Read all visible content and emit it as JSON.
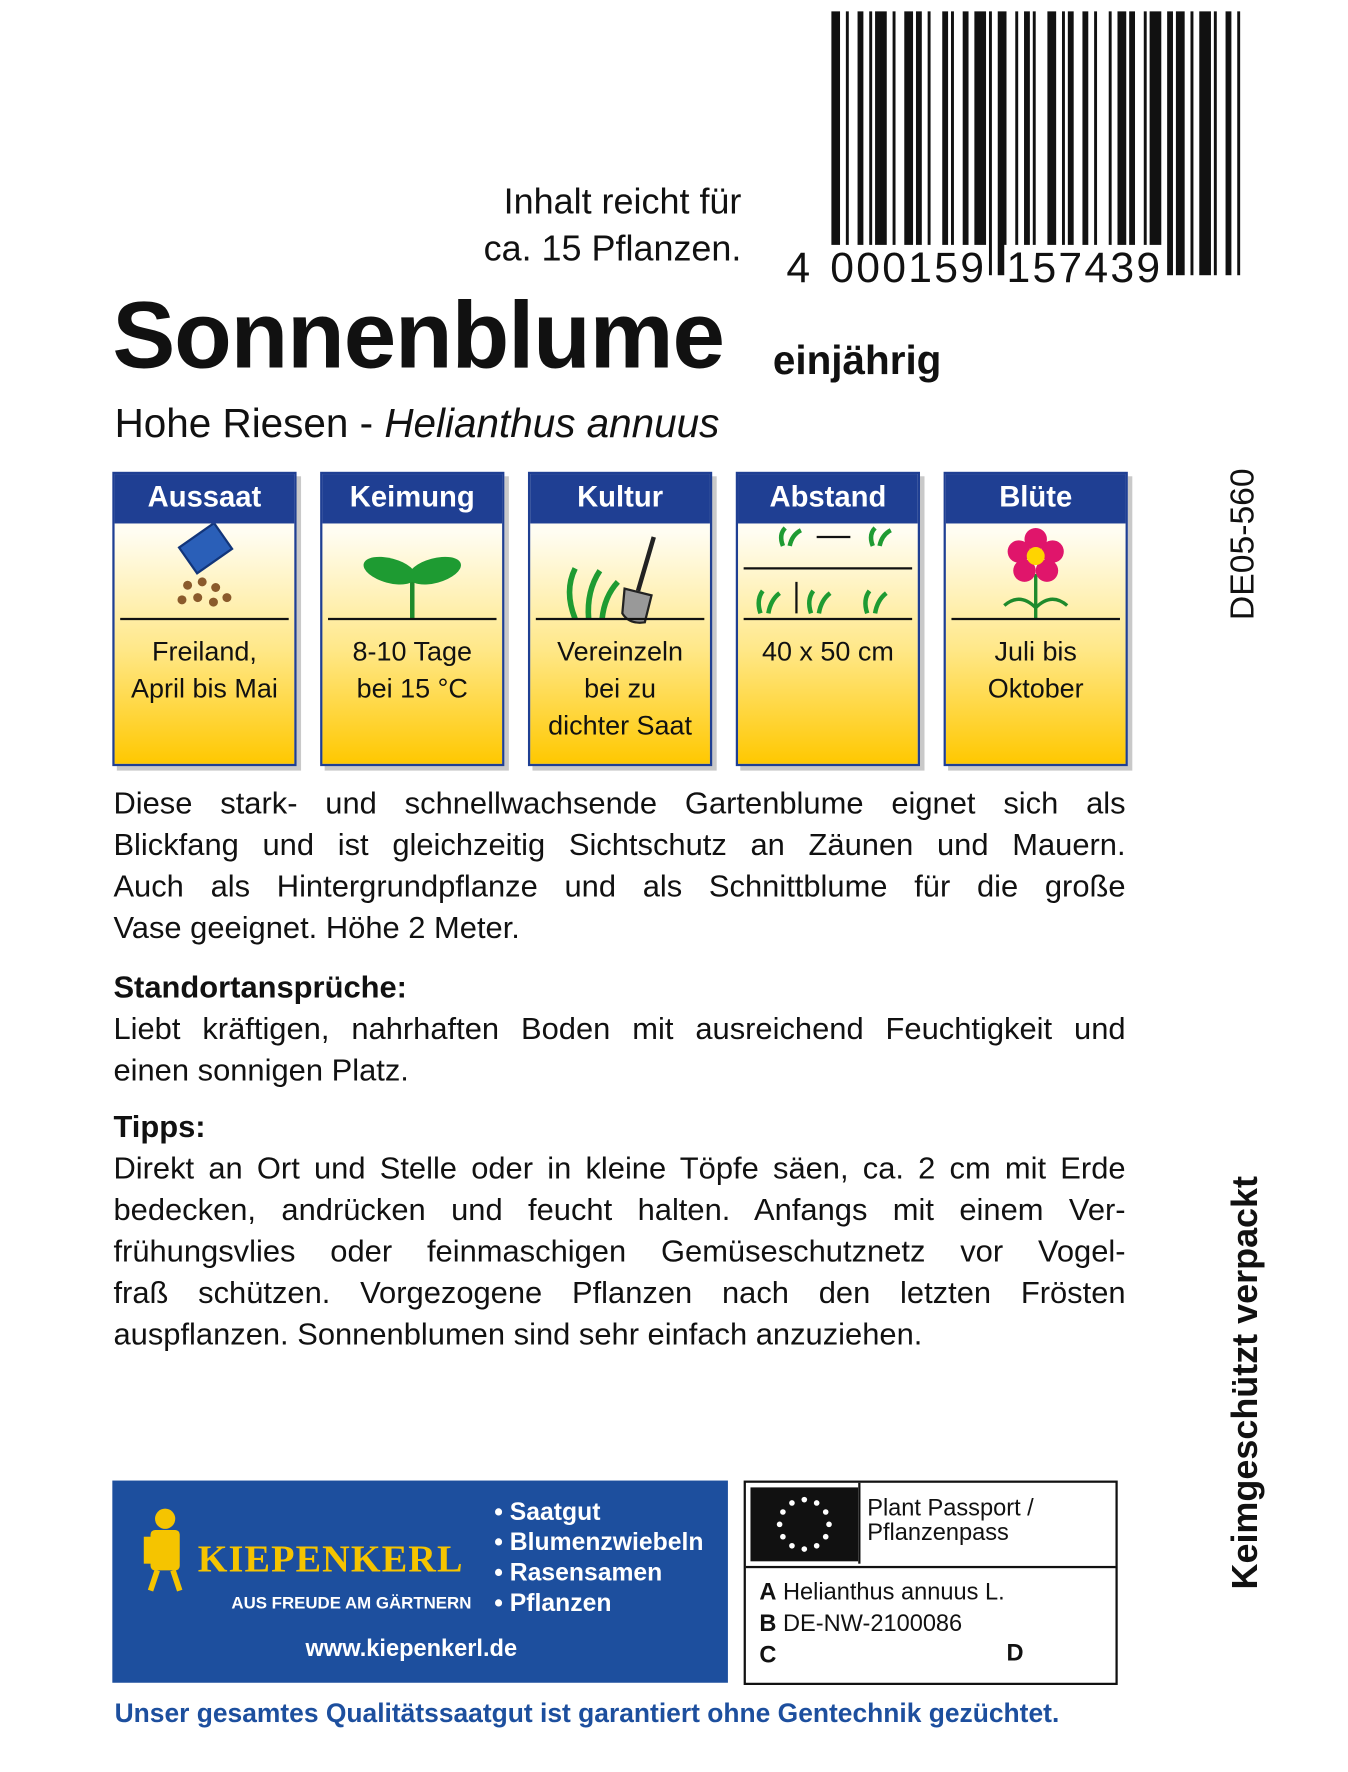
{
  "header": {
    "quantity_line1": "Inhalt reicht für",
    "quantity_line2": "ca. 15 Pflanzen.",
    "barcode_digits": [
      "4",
      "000159",
      "157439"
    ],
    "title": "Sonnenblume",
    "title_note": "einjährig",
    "subtitle": "Hohe Riesen -",
    "subtitle_latin": "Helianthus annuus"
  },
  "side": {
    "code": "DE05-560",
    "note": "Keimgeschützt verpackt"
  },
  "cards": [
    {
      "title": "Aussaat",
      "lines": [
        "Freiland,",
        "April bis Mai"
      ]
    },
    {
      "title": "Keimung",
      "lines": [
        "8-10 Tage",
        "bei 15 °C"
      ]
    },
    {
      "title": "Kultur",
      "lines": [
        "Vereinzeln",
        "bei zu",
        "dichter Saat"
      ]
    },
    {
      "title": "Abstand",
      "lines": [
        "40 x 50 cm"
      ]
    },
    {
      "title": "Blüte",
      "lines": [
        "Juli bis",
        "Oktober"
      ]
    }
  ],
  "description": {
    "lines": [
      "Diese stark- und schnellwachsende Gartenblume eignet sich als",
      "Blickfang und ist gleichzeitig Sichtschutz an Zäunen und Mauern.",
      "Auch als Hintergrundpflanze und als Schnittblume für die große",
      "Vase geeignet. Höhe 2 Meter."
    ]
  },
  "sections": [
    {
      "heading": "Standortansprüche:",
      "lines": [
        "Liebt kräftigen, nahrhaften Boden mit ausreichend Feuchtigkeit und",
        "einen sonnigen Platz."
      ]
    },
    {
      "heading": "Tipps:",
      "lines": [
        "Direkt an Ort und Stelle oder in kleine Töpfe säen, ca. 2 cm mit Erde",
        "bedecken, andrücken und feucht halten. Anfangs mit einem Ver-",
        "frühungsvlies oder feinmaschigen Gemüseschutznetz vor Vogel-",
        "fraß schützen. Vorgezogene Pflanzen nach den letzten Frösten",
        "auspflanzen. Sonnenblumen sind sehr einfach anzuziehen."
      ]
    }
  ],
  "footer": {
    "brand": "KIEPENKERL",
    "slogan": "AUS FREUDE AM GÄRTNERN",
    "website": "www.kiepenkerl.de",
    "products": [
      "Saatgut",
      "Blumenzwiebeln",
      "Rasensamen",
      "Pflanzen"
    ]
  },
  "passport": {
    "title_line1": "Plant Passport /",
    "title_line2": "Pflanzenpass",
    "rows": [
      {
        "key": "A",
        "value": "Helianthus annuus L."
      },
      {
        "key": "B",
        "value": "DE-NW-2100086"
      }
    ],
    "key_c": "C",
    "key_d": "D"
  },
  "disclaimer": "Unser gesamtes Qualitätssaatgut ist garantiert ohne Gentechnik gezüchtet."
}
